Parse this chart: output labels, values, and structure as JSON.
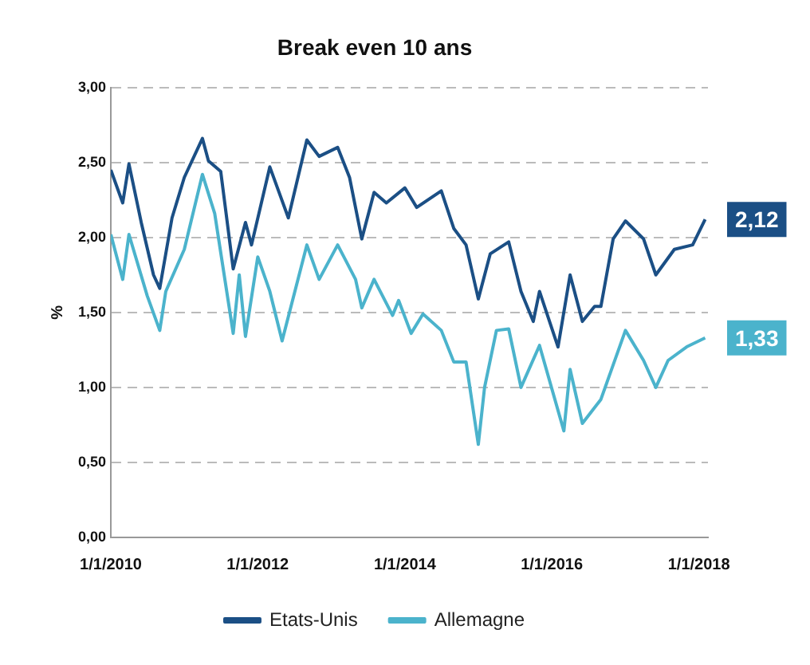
{
  "chart_data": {
    "type": "line",
    "title": "Break even 10 ans",
    "ylabel": "%",
    "xlim": [
      "2010-01-01",
      "2018-02-15"
    ],
    "xticks": [
      {
        "value": "2010-01-01",
        "label": "1/1/2010"
      },
      {
        "value": "2012-01-01",
        "label": "1/1/2012"
      },
      {
        "value": "2014-01-01",
        "label": "1/1/2014"
      },
      {
        "value": "2016-01-01",
        "label": "1/1/2016"
      },
      {
        "value": "2018-01-01",
        "label": "1/1/2018"
      }
    ],
    "ylim": [
      0,
      3
    ],
    "yticks": [
      {
        "value": 0,
        "label": "0,00"
      },
      {
        "value": 0.5,
        "label": "0,50"
      },
      {
        "value": 1,
        "label": "1,00"
      },
      {
        "value": 1.5,
        "label": "1,50"
      },
      {
        "value": 2,
        "label": "2,00"
      },
      {
        "value": 2.5,
        "label": "2,50"
      },
      {
        "value": 3,
        "label": "3,00"
      }
    ],
    "grid": "y",
    "legend": "bottom",
    "marker": "none",
    "line_style": "solid",
    "series": [
      {
        "name": "Etats-Unis",
        "color": "#1b4f85",
        "x": [
          "2010-01",
          "2010-03",
          "2010-04",
          "2010-06",
          "2010-08",
          "2010-09",
          "2010-11",
          "2011-01",
          "2011-04",
          "2011-05",
          "2011-07",
          "2011-09",
          "2011-11",
          "2011-12",
          "2012-03",
          "2012-06",
          "2012-09",
          "2012-11",
          "2013-02",
          "2013-04",
          "2013-06",
          "2013-08",
          "2013-10",
          "2014-01",
          "2014-03",
          "2014-07",
          "2014-09",
          "2014-11",
          "2015-01",
          "2015-03",
          "2015-06",
          "2015-08",
          "2015-10",
          "2015-11",
          "2016-02",
          "2016-04",
          "2016-06",
          "2016-08",
          "2016-09",
          "2016-11",
          "2017-01",
          "2017-04",
          "2017-06",
          "2017-09",
          "2017-12",
          "2018-02"
        ],
        "values": [
          2.45,
          2.23,
          2.49,
          2.1,
          1.75,
          1.66,
          2.13,
          2.4,
          2.66,
          2.51,
          2.44,
          1.79,
          2.1,
          1.95,
          2.47,
          2.13,
          2.65,
          2.54,
          2.6,
          2.4,
          1.99,
          2.3,
          2.23,
          2.33,
          2.2,
          2.31,
          2.06,
          1.95,
          1.59,
          1.89,
          1.97,
          1.64,
          1.44,
          1.64,
          1.27,
          1.75,
          1.44,
          1.54,
          1.54,
          1.99,
          2.11,
          1.99,
          1.75,
          1.92,
          1.95,
          2.12
        ],
        "value_labels": [
          null,
          null,
          null,
          null,
          null,
          null,
          null,
          null,
          null,
          null,
          null,
          null,
          null,
          null,
          null,
          null,
          null,
          null,
          null,
          null,
          null,
          null,
          null,
          null,
          null,
          null,
          null,
          null,
          null,
          null,
          null,
          null,
          null,
          null,
          null,
          null,
          null,
          null,
          null,
          null,
          null,
          null,
          null,
          null,
          null,
          "2,12"
        ]
      },
      {
        "name": "Allemagne",
        "color": "#4bb3cc",
        "x": [
          "2010-01",
          "2010-03",
          "2010-04",
          "2010-07",
          "2010-09",
          "2010-10",
          "2011-01",
          "2011-04",
          "2011-06",
          "2011-09",
          "2011-10",
          "2011-11",
          "2012-01",
          "2012-03",
          "2012-05",
          "2012-09",
          "2012-11",
          "2013-02",
          "2013-05",
          "2013-06",
          "2013-08",
          "2013-11",
          "2013-12",
          "2014-02",
          "2014-04",
          "2014-07",
          "2014-09",
          "2014-11",
          "2015-01",
          "2015-02",
          "2015-04",
          "2015-06",
          "2015-08",
          "2015-11",
          "2016-03",
          "2016-04",
          "2016-06",
          "2016-09",
          "2017-01",
          "2017-04",
          "2017-06",
          "2017-08",
          "2017-11",
          "2018-02"
        ],
        "values": [
          2.02,
          1.72,
          2.02,
          1.61,
          1.38,
          1.64,
          1.92,
          2.42,
          2.16,
          1.36,
          1.75,
          1.34,
          1.87,
          1.64,
          1.31,
          1.95,
          1.72,
          1.95,
          1.72,
          1.53,
          1.72,
          1.48,
          1.58,
          1.36,
          1.49,
          1.38,
          1.17,
          1.17,
          0.62,
          1.0,
          1.38,
          1.39,
          1.0,
          1.28,
          0.71,
          1.12,
          0.76,
          0.92,
          1.38,
          1.18,
          1.0,
          1.18,
          1.27,
          1.33
        ],
        "value_labels": [
          null,
          null,
          null,
          null,
          null,
          null,
          null,
          null,
          null,
          null,
          null,
          null,
          null,
          null,
          null,
          null,
          null,
          null,
          null,
          null,
          null,
          null,
          null,
          null,
          null,
          null,
          null,
          null,
          null,
          null,
          null,
          null,
          null,
          null,
          null,
          null,
          null,
          null,
          null,
          null,
          null,
          null,
          null,
          "1,33"
        ]
      }
    ]
  }
}
